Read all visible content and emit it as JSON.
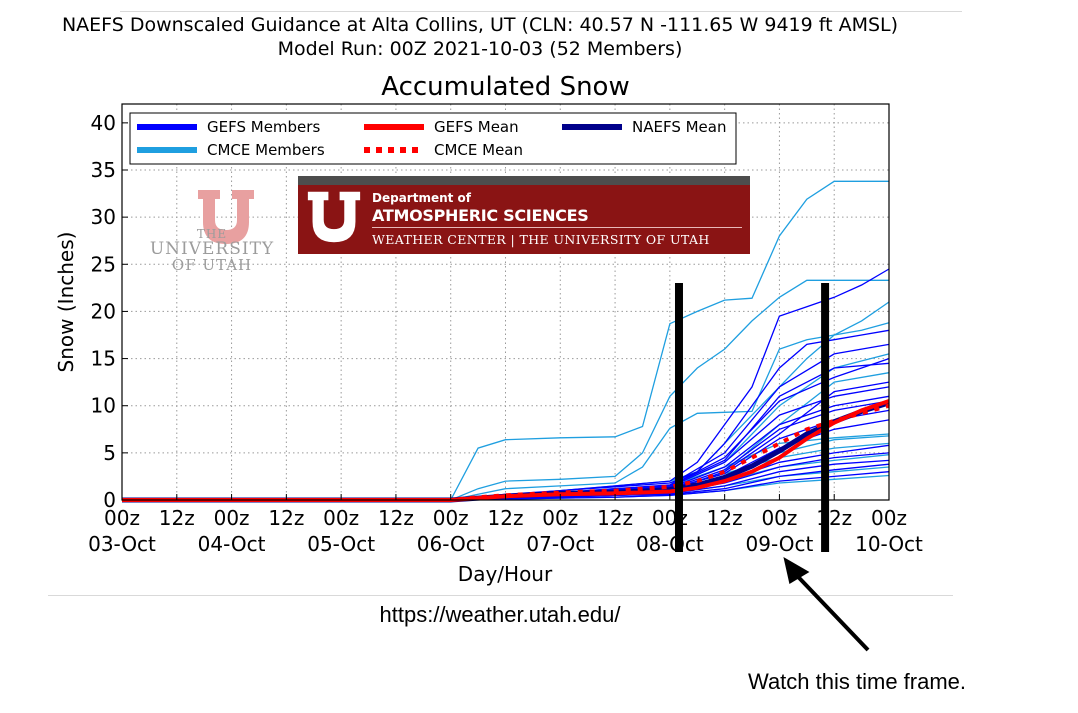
{
  "header": {
    "line1": "NAEFS Downscaled Guidance at Alta Collins, UT (CLN: 40.57 N -111.65 W 9419 ft AMSL)",
    "line2": "Model Run: 00Z 2021-10-03 (52 Members)"
  },
  "colors": {
    "gefs_members": "#0000ff",
    "cmce_members": "#1f9fe0",
    "gefs_mean": "#ff0000",
    "cmce_mean": "#ff0000",
    "naefs_mean": "#00008b",
    "annotation": "#000000"
  },
  "chart_data": {
    "type": "line",
    "title": "Accumulated Snow",
    "xlabel": "Day/Hour",
    "ylabel": "Snow (Inches)",
    "ylim": [
      0,
      42
    ],
    "yticks": [
      0,
      5,
      10,
      15,
      20,
      25,
      30,
      35,
      40
    ],
    "x_hours": [
      0,
      12,
      24,
      36,
      48,
      60,
      72,
      84,
      96,
      108,
      120,
      132,
      144,
      156,
      168
    ],
    "xlim": [
      0,
      168
    ],
    "x_tick_hour_labels": [
      "00z",
      "12z",
      "00z",
      "12z",
      "00z",
      "12z",
      "00z",
      "12z",
      "00z",
      "12z",
      "00z",
      "12z",
      "00z",
      "12z",
      "00z"
    ],
    "x_tick_day_labels": [
      "03-Oct",
      "04-Oct",
      "05-Oct",
      "06-Oct",
      "07-Oct",
      "08-Oct",
      "09-Oct",
      "10-Oct"
    ],
    "grid": true,
    "legend": {
      "placement": "top-left",
      "entries": [
        {
          "label": "GEFS Members",
          "style": "gefs_members"
        },
        {
          "label": "GEFS Mean",
          "style": "gefs_mean"
        },
        {
          "label": "NAEFS Mean",
          "style": "naefs_mean"
        },
        {
          "label": "CMCE Members",
          "style": "cmce_members"
        },
        {
          "label": "CMCE Mean",
          "style": "cmce_mean"
        }
      ]
    },
    "series": [
      {
        "name": "GEFS Mean",
        "x": [
          0,
          72,
          78,
          84,
          96,
          108,
          120,
          126,
          132,
          138,
          144,
          150,
          156,
          162,
          168
        ],
        "y": [
          0,
          0,
          0.2,
          0.4,
          0.6,
          0.7,
          0.9,
          1.3,
          2.0,
          3.0,
          4.5,
          6.5,
          8.2,
          9.5,
          10.5
        ]
      },
      {
        "name": "CMCE Mean",
        "x": [
          0,
          72,
          78,
          84,
          96,
          108,
          120,
          126,
          132,
          138,
          144,
          150,
          156,
          162,
          168
        ],
        "y": [
          0,
          0,
          0.3,
          0.5,
          0.8,
          1.0,
          1.4,
          2.0,
          3.0,
          4.5,
          6.0,
          7.5,
          8.4,
          9.2,
          10.0
        ]
      },
      {
        "name": "NAEFS Mean",
        "x": [
          0,
          72,
          78,
          84,
          96,
          108,
          120,
          126,
          132,
          138,
          144,
          150,
          156,
          162,
          168
        ],
        "y": [
          0,
          0,
          0.2,
          0.4,
          0.7,
          0.8,
          1.1,
          1.6,
          2.4,
          3.6,
          5.2,
          7.0,
          8.3,
          9.4,
          10.3
        ]
      }
    ],
    "members": [
      {
        "group": "CMCE",
        "x": [
          0,
          72,
          78,
          84,
          96,
          108,
          114,
          120,
          126,
          132,
          138,
          144,
          150,
          156,
          162,
          168
        ],
        "y": [
          0,
          0,
          5.5,
          6.4,
          6.6,
          6.7,
          7.8,
          18.7,
          20.0,
          21.2,
          21.4,
          28.0,
          31.9,
          33.8,
          33.8,
          33.8
        ]
      },
      {
        "group": "CMCE",
        "x": [
          0,
          72,
          78,
          84,
          96,
          108,
          114,
          120,
          126,
          132,
          138,
          144,
          150,
          156,
          162,
          168
        ],
        "y": [
          0,
          0,
          1.2,
          2.0,
          2.2,
          2.5,
          5.0,
          11.0,
          14.0,
          16.0,
          19.0,
          21.5,
          23.3,
          23.3,
          23.3,
          23.3
        ]
      },
      {
        "group": "CMCE",
        "x": [
          0,
          72,
          78,
          84,
          96,
          108,
          114,
          120,
          126,
          132,
          138,
          144,
          150,
          156,
          162,
          168
        ],
        "y": [
          0,
          0,
          0.6,
          1.2,
          1.5,
          1.8,
          3.5,
          7.6,
          9.2,
          9.3,
          9.4,
          16.0,
          17.0,
          17.5,
          18.0,
          18.8
        ]
      },
      {
        "group": "CMCE",
        "x": [
          0,
          72,
          84,
          96,
          108,
          120,
          126,
          132,
          138,
          144,
          150,
          156,
          162,
          168
        ],
        "y": [
          0,
          0,
          0.5,
          1.0,
          1.5,
          2.0,
          3.0,
          6.0,
          9.0,
          12.0,
          15.0,
          17.5,
          19.0,
          21.0
        ]
      },
      {
        "group": "CMCE",
        "x": [
          0,
          72,
          84,
          96,
          108,
          120,
          132,
          144,
          156,
          168
        ],
        "y": [
          0,
          0,
          0.4,
          0.8,
          1.2,
          1.5,
          3.5,
          6.0,
          6.6,
          7.0
        ]
      },
      {
        "group": "CMCE",
        "x": [
          0,
          72,
          84,
          96,
          108,
          120,
          132,
          144,
          156,
          168
        ],
        "y": [
          0,
          0,
          0.3,
          0.6,
          0.9,
          1.2,
          2.8,
          4.5,
          5.5,
          6.0
        ]
      },
      {
        "group": "CMCE",
        "x": [
          0,
          72,
          84,
          96,
          108,
          120,
          132,
          144,
          156,
          168
        ],
        "y": [
          0,
          0,
          0.2,
          0.4,
          0.7,
          1.0,
          2.0,
          3.5,
          4.2,
          4.8
        ]
      },
      {
        "group": "CMCE",
        "x": [
          0,
          72,
          84,
          96,
          108,
          120,
          132,
          144,
          156,
          168
        ],
        "y": [
          0,
          0,
          0.3,
          0.5,
          0.8,
          1.0,
          3.0,
          8.0,
          12.5,
          13.5
        ]
      },
      {
        "group": "CMCE",
        "x": [
          0,
          72,
          84,
          96,
          108,
          120,
          132,
          144,
          156,
          168
        ],
        "y": [
          0,
          0,
          0.2,
          0.3,
          0.5,
          0.7,
          1.5,
          2.5,
          3.0,
          3.5
        ]
      },
      {
        "group": "CMCE",
        "x": [
          0,
          72,
          84,
          96,
          108,
          120,
          132,
          144,
          156,
          168
        ],
        "y": [
          0,
          0,
          0.1,
          0.2,
          0.3,
          0.5,
          1.0,
          1.8,
          2.2,
          2.6
        ]
      },
      {
        "group": "CMCE",
        "x": [
          0,
          72,
          84,
          96,
          108,
          120,
          132,
          144,
          156,
          168
        ],
        "y": [
          0,
          0,
          0.4,
          0.7,
          1.0,
          1.4,
          4.0,
          10.0,
          14.0,
          15.5
        ]
      },
      {
        "group": "CMCE",
        "x": [
          0,
          72,
          84,
          96,
          108,
          120,
          132,
          144,
          156,
          168
        ],
        "y": [
          0,
          0,
          0.2,
          0.4,
          0.6,
          0.9,
          2.4,
          5.0,
          6.4,
          6.8
        ]
      },
      {
        "group": "GEFS",
        "x": [
          0,
          72,
          84,
          96,
          108,
          120,
          126,
          132,
          138,
          144,
          150,
          156,
          162,
          168
        ],
        "y": [
          0,
          0,
          0.5,
          1.0,
          1.5,
          2.0,
          4.0,
          8.0,
          12.0,
          19.5,
          20.5,
          21.5,
          22.8,
          24.5
        ]
      },
      {
        "group": "GEFS",
        "x": [
          0,
          72,
          84,
          96,
          108,
          120,
          126,
          132,
          138,
          144,
          150,
          156,
          162,
          168
        ],
        "y": [
          0,
          0,
          0.6,
          1.0,
          1.4,
          1.8,
          3.0,
          6.0,
          10.0,
          14.0,
          16.5,
          17.0,
          17.5,
          18.0
        ]
      },
      {
        "group": "GEFS",
        "x": [
          0,
          72,
          84,
          96,
          108,
          120,
          132,
          144,
          156,
          168
        ],
        "y": [
          0,
          0,
          0.4,
          0.8,
          1.1,
          1.5,
          4.5,
          10.5,
          13.0,
          15.0
        ]
      },
      {
        "group": "GEFS",
        "x": [
          0,
          72,
          84,
          96,
          108,
          120,
          132,
          144,
          156,
          168
        ],
        "y": [
          0,
          0,
          0.3,
          0.6,
          1.0,
          1.3,
          3.5,
          8.0,
          10.0,
          11.0
        ]
      },
      {
        "group": "GEFS",
        "x": [
          0,
          72,
          84,
          96,
          108,
          120,
          132,
          144,
          156,
          168
        ],
        "y": [
          0,
          0,
          0.2,
          0.5,
          0.8,
          1.1,
          2.5,
          5.5,
          7.5,
          8.5
        ]
      },
      {
        "group": "GEFS",
        "x": [
          0,
          72,
          84,
          96,
          108,
          120,
          132,
          144,
          156,
          168
        ],
        "y": [
          0,
          0,
          0.2,
          0.4,
          0.6,
          0.9,
          2.0,
          4.0,
          5.0,
          5.8
        ]
      },
      {
        "group": "GEFS",
        "x": [
          0,
          72,
          84,
          96,
          108,
          120,
          132,
          144,
          156,
          168
        ],
        "y": [
          0,
          0,
          0.3,
          0.5,
          0.7,
          1.0,
          3.0,
          7.0,
          11.5,
          12.5
        ]
      },
      {
        "group": "GEFS",
        "x": [
          0,
          72,
          84,
          96,
          108,
          120,
          132,
          144,
          156,
          168
        ],
        "y": [
          0,
          0,
          0.1,
          0.3,
          0.5,
          0.7,
          1.5,
          3.0,
          3.8,
          4.2
        ]
      },
      {
        "group": "GEFS",
        "x": [
          0,
          72,
          84,
          96,
          108,
          120,
          132,
          144,
          156,
          168
        ],
        "y": [
          0,
          0,
          0.4,
          0.8,
          1.2,
          1.6,
          5.0,
          12.0,
          15.5,
          16.5
        ]
      },
      {
        "group": "GEFS",
        "x": [
          0,
          72,
          84,
          96,
          108,
          120,
          132,
          144,
          156,
          168
        ],
        "y": [
          0,
          0,
          0.2,
          0.4,
          0.6,
          0.8,
          1.8,
          3.5,
          4.5,
          5.0
        ]
      },
      {
        "group": "GEFS",
        "x": [
          0,
          72,
          84,
          96,
          108,
          120,
          132,
          144,
          156,
          168
        ],
        "y": [
          0,
          0,
          0.3,
          0.6,
          0.9,
          1.2,
          3.2,
          7.5,
          9.5,
          10.5
        ]
      },
      {
        "group": "GEFS",
        "x": [
          0,
          72,
          84,
          96,
          108,
          120,
          132,
          144,
          156,
          168
        ],
        "y": [
          0,
          0,
          0.1,
          0.2,
          0.3,
          0.5,
          1.0,
          2.0,
          2.5,
          3.0
        ]
      },
      {
        "group": "GEFS",
        "x": [
          0,
          72,
          84,
          96,
          108,
          120,
          132,
          144,
          156,
          168
        ],
        "y": [
          0,
          0,
          0.2,
          0.5,
          0.8,
          1.2,
          2.8,
          6.5,
          8.5,
          9.5
        ]
      },
      {
        "group": "GEFS",
        "x": [
          0,
          72,
          84,
          96,
          108,
          120,
          132,
          144,
          156,
          168
        ],
        "y": [
          0,
          0,
          0.3,
          0.7,
          1.0,
          1.4,
          4.0,
          9.0,
          11.0,
          12.0
        ]
      },
      {
        "group": "GEFS",
        "x": [
          0,
          72,
          84,
          96,
          108,
          120,
          132,
          144,
          156,
          168
        ],
        "y": [
          0,
          0,
          0.2,
          0.3,
          0.5,
          0.6,
          1.2,
          2.5,
          3.2,
          3.8
        ]
      },
      {
        "group": "GEFS",
        "x": [
          0,
          72,
          84,
          96,
          108,
          120,
          132,
          144,
          156,
          168
        ],
        "y": [
          0,
          0,
          0.4,
          0.7,
          1.1,
          1.5,
          4.2,
          11.0,
          14.0,
          14.5
        ]
      }
    ]
  },
  "source_url": "https://weather.utah.edu/",
  "logos": {
    "university": {
      "line1": "THE",
      "line2": "UNIVERSITY",
      "line3": "OF UTAH"
    },
    "department": {
      "line1": "Department of",
      "line2": "ATMOSPHERIC SCIENCES",
      "line3": "WEATHER CENTER | THE UNIVERSITY OF UTAH"
    }
  },
  "annotation": {
    "text": "Watch this time frame.",
    "highlight_hours": [
      122,
      154
    ],
    "arrow_target_hour": 144
  }
}
